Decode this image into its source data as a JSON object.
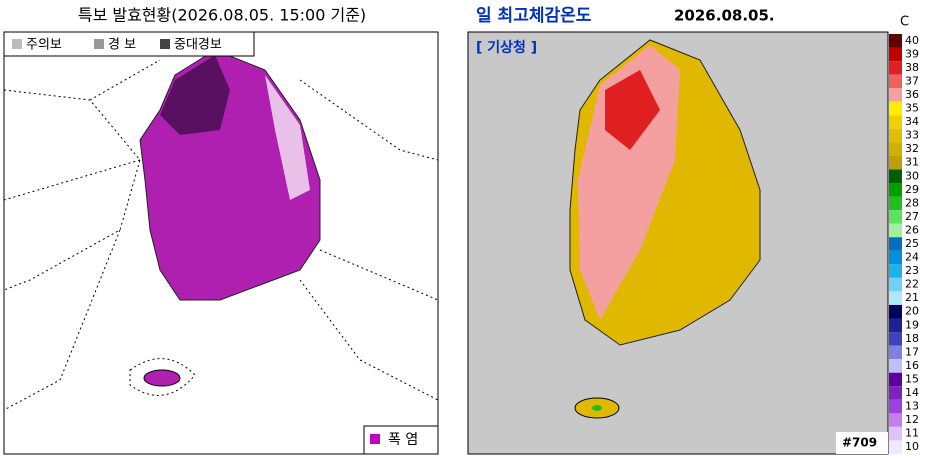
{
  "left_panel": {
    "title": "특보 발효현황(2026.08.05. 15:00 기준)",
    "legend": [
      {
        "label": "주의보",
        "color": "#bbbbbb"
      },
      {
        "label": "경 보",
        "color": "#999999"
      },
      {
        "label": "중대경보",
        "color": "#444444"
      }
    ],
    "hazard_legend": {
      "label": "폭 염",
      "color": "#c000c0"
    }
  },
  "right_panel": {
    "title": "일 최고체감온도",
    "date": "2026.08.05.",
    "source": "[ 기상청 ]",
    "code": "#709",
    "colorbar": {
      "unit": "C",
      "levels": [
        {
          "value": 40,
          "color": "#600000"
        },
        {
          "value": 39,
          "color": "#c00000"
        },
        {
          "value": 38,
          "color": "#e02020"
        },
        {
          "value": 37,
          "color": "#f06060"
        },
        {
          "value": 36,
          "color": "#f8a0a0"
        },
        {
          "value": 35,
          "color": "#fff000"
        },
        {
          "value": 34,
          "color": "#f0d000"
        },
        {
          "value": 33,
          "color": "#e0c000"
        },
        {
          "value": 32,
          "color": "#d0b000"
        },
        {
          "value": 31,
          "color": "#c0a000"
        },
        {
          "value": 30,
          "color": "#006000"
        },
        {
          "value": 29,
          "color": "#00a000"
        },
        {
          "value": 28,
          "color": "#20c020"
        },
        {
          "value": 27,
          "color": "#60e060"
        },
        {
          "value": 26,
          "color": "#a0f0a0"
        },
        {
          "value": 25,
          "color": "#0070c0"
        },
        {
          "value": 24,
          "color": "#0090e0"
        },
        {
          "value": 23,
          "color": "#20b0f0"
        },
        {
          "value": 22,
          "color": "#70d0f8"
        },
        {
          "value": 21,
          "color": "#b0e8ff"
        },
        {
          "value": 20,
          "color": "#000060"
        },
        {
          "value": 19,
          "color": "#202090"
        },
        {
          "value": 18,
          "color": "#4040c0"
        },
        {
          "value": 17,
          "color": "#8080e0"
        },
        {
          "value": 16,
          "color": "#c0c0f8"
        },
        {
          "value": 15,
          "color": "#6000a0"
        },
        {
          "value": 14,
          "color": "#8020c0"
        },
        {
          "value": 13,
          "color": "#a040e0"
        },
        {
          "value": 12,
          "color": "#c080f0"
        },
        {
          "value": 11,
          "color": "#e0c0ff"
        },
        {
          "value": 10,
          "color": "#f4e8ff"
        }
      ]
    }
  }
}
